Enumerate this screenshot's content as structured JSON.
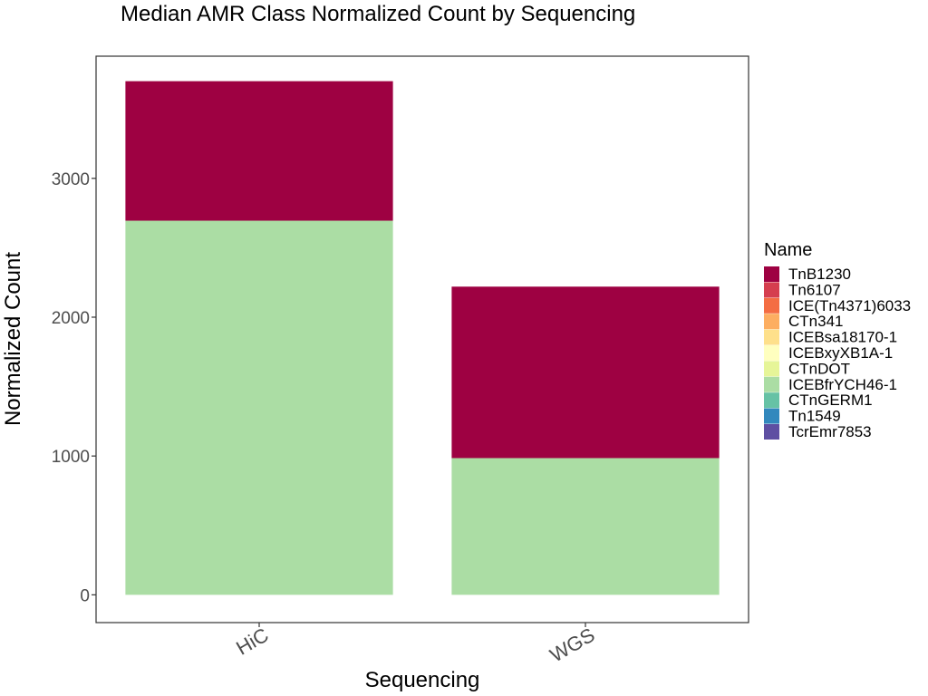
{
  "chart_data": {
    "type": "bar",
    "stacked": true,
    "title": "Median AMR Class Normalized Count by Sequencing",
    "xlabel": "Sequencing",
    "ylabel": "Normalized Count",
    "categories": [
      "HiC",
      "WGS"
    ],
    "ylim": [
      -200,
      3880
    ],
    "yticks": [
      0,
      1000,
      2000,
      3000
    ],
    "grid": false,
    "legend": {
      "title": "Name",
      "placement": "right",
      "entries": [
        {
          "name": "TnB1230",
          "color": "#9E0142"
        },
        {
          "name": "Tn6107",
          "color": "#D53E4F"
        },
        {
          "name": "ICE(Tn4371)6033",
          "color": "#F46D43"
        },
        {
          "name": "CTn341",
          "color": "#FDAE61"
        },
        {
          "name": "ICEBsa18170-1",
          "color": "#FEE08B"
        },
        {
          "name": "ICEBxyXB1A-1",
          "color": "#FFFFBF"
        },
        {
          "name": "CTnDOT",
          "color": "#E6F598"
        },
        {
          "name": "ICEBfrYCH46-1",
          "color": "#ABDDA4"
        },
        {
          "name": "CTnGERM1",
          "color": "#66C2A5"
        },
        {
          "name": "Tn1549",
          "color": "#3288BD"
        },
        {
          "name": "TcrEmr7853",
          "color": "#5E4FA2"
        }
      ]
    },
    "series": [
      {
        "name": "ICEBfrYCH46-1",
        "color": "#ABDDA4",
        "values": [
          2695,
          985
        ]
      },
      {
        "name": "TnB1230",
        "color": "#9E0142",
        "values": [
          1005,
          1235
        ]
      }
    ]
  }
}
